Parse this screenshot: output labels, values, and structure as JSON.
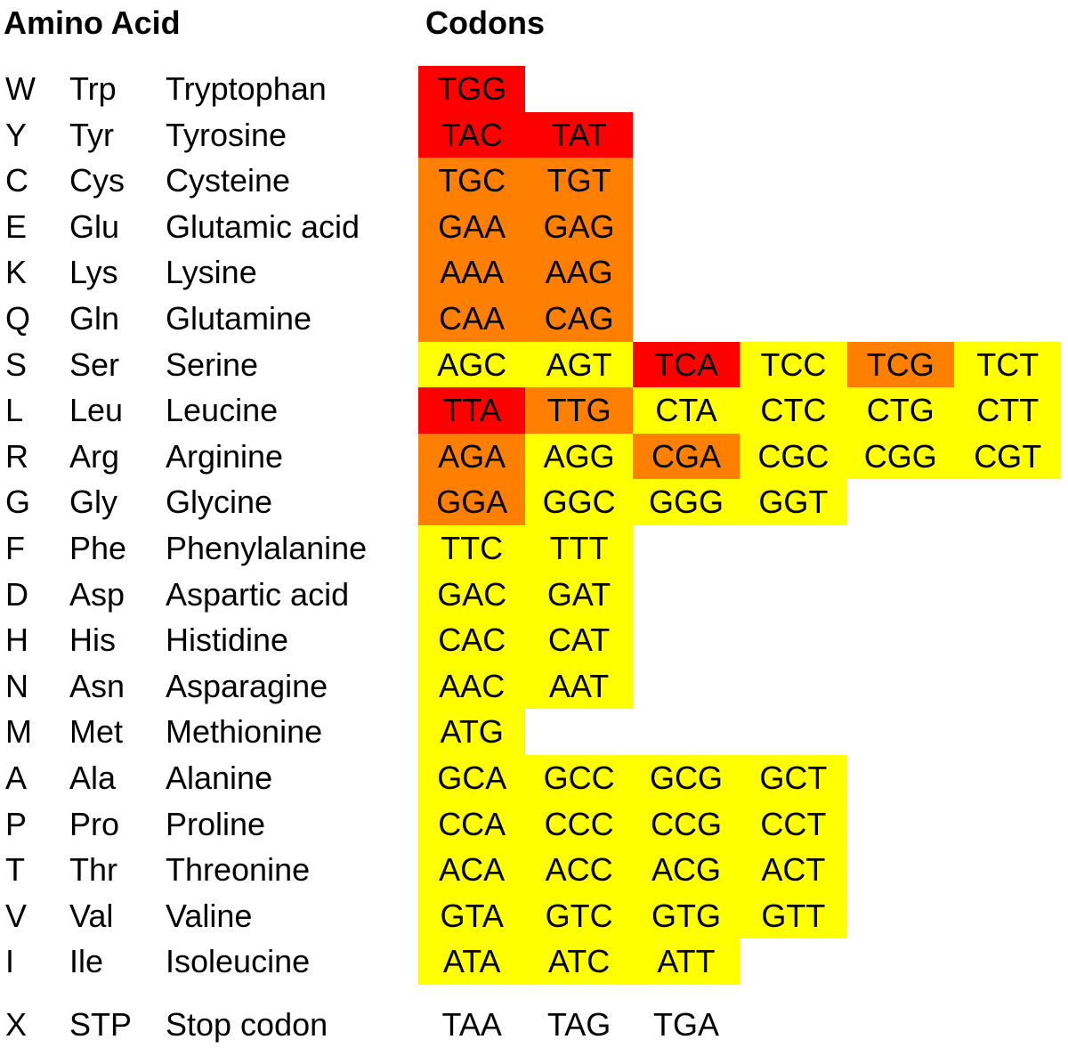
{
  "headers": {
    "amino_acid": "Amino Acid",
    "codons": "Codons"
  },
  "colors": {
    "high": "#ff0000",
    "mid": "#ff7f00",
    "low": "#ffff00"
  },
  "rows": [
    {
      "one": "W",
      "three": "Trp",
      "name": "Tryptophan",
      "codons": [
        {
          "c": "TGG",
          "l": "high"
        }
      ]
    },
    {
      "one": "Y",
      "three": "Tyr",
      "name": "Tyrosine",
      "codons": [
        {
          "c": "TAC",
          "l": "high"
        },
        {
          "c": "TAT",
          "l": "high"
        }
      ]
    },
    {
      "one": "C",
      "three": "Cys",
      "name": "Cysteine",
      "codons": [
        {
          "c": "TGC",
          "l": "mid"
        },
        {
          "c": "TGT",
          "l": "mid"
        }
      ]
    },
    {
      "one": "E",
      "three": "Glu",
      "name": "Glutamic acid",
      "codons": [
        {
          "c": "GAA",
          "l": "mid"
        },
        {
          "c": "GAG",
          "l": "mid"
        }
      ]
    },
    {
      "one": "K",
      "three": "Lys",
      "name": "Lysine",
      "codons": [
        {
          "c": "AAA",
          "l": "mid"
        },
        {
          "c": "AAG",
          "l": "mid"
        }
      ]
    },
    {
      "one": "Q",
      "three": "Gln",
      "name": "Glutamine",
      "codons": [
        {
          "c": "CAA",
          "l": "mid"
        },
        {
          "c": "CAG",
          "l": "mid"
        }
      ]
    },
    {
      "one": "S",
      "three": "Ser",
      "name": "Serine",
      "codons": [
        {
          "c": "AGC",
          "l": "low"
        },
        {
          "c": "AGT",
          "l": "low"
        },
        {
          "c": "TCA",
          "l": "high"
        },
        {
          "c": "TCC",
          "l": "low"
        },
        {
          "c": "TCG",
          "l": "mid"
        },
        {
          "c": "TCT",
          "l": "low"
        }
      ]
    },
    {
      "one": "L",
      "three": "Leu",
      "name": "Leucine",
      "codons": [
        {
          "c": "TTA",
          "l": "high"
        },
        {
          "c": "TTG",
          "l": "mid"
        },
        {
          "c": "CTA",
          "l": "low"
        },
        {
          "c": "CTC",
          "l": "low"
        },
        {
          "c": "CTG",
          "l": "low"
        },
        {
          "c": "CTT",
          "l": "low"
        }
      ]
    },
    {
      "one": "R",
      "three": "Arg",
      "name": "Arginine",
      "codons": [
        {
          "c": "AGA",
          "l": "mid"
        },
        {
          "c": "AGG",
          "l": "low"
        },
        {
          "c": "CGA",
          "l": "mid"
        },
        {
          "c": "CGC",
          "l": "low"
        },
        {
          "c": "CGG",
          "l": "low"
        },
        {
          "c": "CGT",
          "l": "low"
        }
      ]
    },
    {
      "one": "G",
      "three": "Gly",
      "name": "Glycine",
      "codons": [
        {
          "c": "GGA",
          "l": "mid"
        },
        {
          "c": "GGC",
          "l": "low"
        },
        {
          "c": "GGG",
          "l": "low"
        },
        {
          "c": "GGT",
          "l": "low"
        }
      ]
    },
    {
      "one": "F",
      "three": "Phe",
      "name": "Phenylalanine",
      "codons": [
        {
          "c": "TTC",
          "l": "low"
        },
        {
          "c": "TTT",
          "l": "low"
        }
      ]
    },
    {
      "one": "D",
      "three": "Asp",
      "name": "Aspartic acid",
      "codons": [
        {
          "c": "GAC",
          "l": "low"
        },
        {
          "c": "GAT",
          "l": "low"
        }
      ]
    },
    {
      "one": "H",
      "three": "His",
      "name": "Histidine",
      "codons": [
        {
          "c": "CAC",
          "l": "low"
        },
        {
          "c": "CAT",
          "l": "low"
        }
      ]
    },
    {
      "one": "N",
      "three": "Asn",
      "name": "Asparagine",
      "codons": [
        {
          "c": "AAC",
          "l": "low"
        },
        {
          "c": "AAT",
          "l": "low"
        }
      ]
    },
    {
      "one": "M",
      "three": "Met",
      "name": "Methionine",
      "codons": [
        {
          "c": "ATG",
          "l": "low"
        }
      ]
    },
    {
      "one": "A",
      "three": "Ala",
      "name": "Alanine",
      "codons": [
        {
          "c": "GCA",
          "l": "low"
        },
        {
          "c": "GCC",
          "l": "low"
        },
        {
          "c": "GCG",
          "l": "low"
        },
        {
          "c": "GCT",
          "l": "low"
        }
      ]
    },
    {
      "one": "P",
      "three": "Pro",
      "name": "Proline",
      "codons": [
        {
          "c": "CCA",
          "l": "low"
        },
        {
          "c": "CCC",
          "l": "low"
        },
        {
          "c": "CCG",
          "l": "low"
        },
        {
          "c": "CCT",
          "l": "low"
        }
      ]
    },
    {
      "one": "T",
      "three": "Thr",
      "name": "Threonine",
      "codons": [
        {
          "c": "ACA",
          "l": "low"
        },
        {
          "c": "ACC",
          "l": "low"
        },
        {
          "c": "ACG",
          "l": "low"
        },
        {
          "c": "ACT",
          "l": "low"
        }
      ]
    },
    {
      "one": "V",
      "three": "Val",
      "name": "Valine",
      "codons": [
        {
          "c": "GTA",
          "l": "low"
        },
        {
          "c": "GTC",
          "l": "low"
        },
        {
          "c": "GTG",
          "l": "low"
        },
        {
          "c": "GTT",
          "l": "low"
        }
      ]
    },
    {
      "one": "I",
      "three": "Ile",
      "name": "Isoleucine",
      "codons": [
        {
          "c": "ATA",
          "l": "low"
        },
        {
          "c": "ATC",
          "l": "low"
        },
        {
          "c": "ATT",
          "l": "low"
        }
      ]
    },
    {
      "one": "X",
      "three": "STP",
      "name": "Stop codon",
      "codons": [
        {
          "c": "TAA",
          "l": "none"
        },
        {
          "c": "TAG",
          "l": "none"
        },
        {
          "c": "TGA",
          "l": "none"
        }
      ]
    }
  ]
}
